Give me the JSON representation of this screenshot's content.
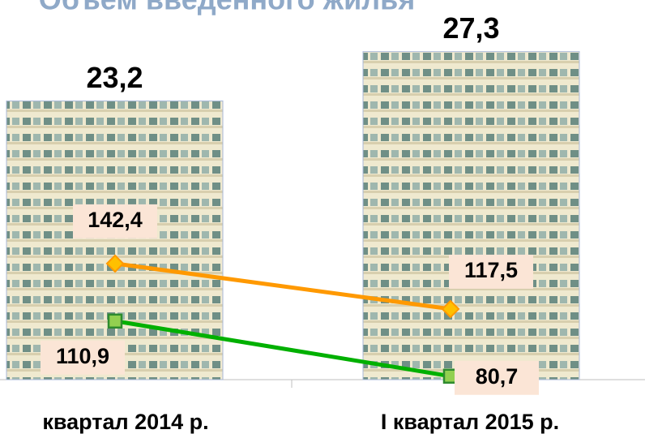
{
  "chart_data": {
    "type": "bar",
    "title": "Объем введенного жилья",
    "categories": [
      "квартал 2014 р.",
      "I квартал 2015 р."
    ],
    "ylim": [
      0,
      31.6
    ],
    "y2lim": [
      78.8,
      286.8
    ],
    "series": [
      {
        "type": "bar",
        "values": [
          23.2,
          27.3
        ],
        "value_labels": [
          "23,2",
          "27,3"
        ]
      },
      {
        "type": "line",
        "axis": "y2",
        "color": "#ff9900",
        "marker_color": "#ffc000",
        "marker": "diamond",
        "values": [
          142.4,
          117.5
        ],
        "value_labels": [
          "142,4",
          "117,5"
        ]
      },
      {
        "type": "line",
        "axis": "y2",
        "color": "#00b000",
        "marker_color": "#92d050",
        "marker": "square",
        "values": [
          110.9,
          80.7
        ],
        "value_labels": [
          "110,9",
          "80,7"
        ]
      }
    ]
  }
}
